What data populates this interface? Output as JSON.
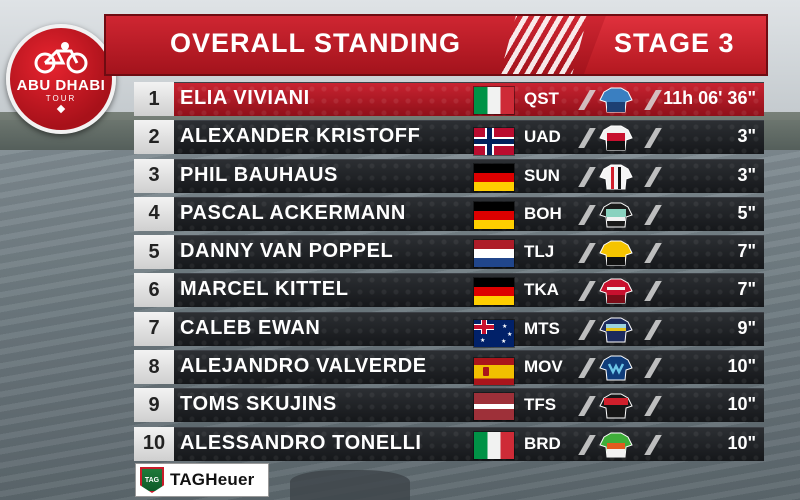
{
  "header": {
    "title": "OVERALL STANDING",
    "stage": "STAGE 3",
    "accent_color": "#c41e2a"
  },
  "logo": {
    "line1": "ABU DHABI",
    "line2": "TOUR"
  },
  "standings": [
    {
      "pos": "1",
      "name": "ELIA VIVIANI",
      "flag": "italy-flag",
      "team": "QST",
      "jersey": "quickstep-jersey",
      "time": "11h 06' 36\""
    },
    {
      "pos": "2",
      "name": "ALEXANDER KRISTOFF",
      "flag": "norway-flag",
      "team": "UAD",
      "jersey": "uae-jersey",
      "time": "3\""
    },
    {
      "pos": "3",
      "name": "PHIL BAUHAUS",
      "flag": "germany-flag",
      "team": "SUN",
      "jersey": "sunweb-jersey",
      "time": "3\""
    },
    {
      "pos": "4",
      "name": "PASCAL ACKERMANN",
      "flag": "germany-flag",
      "team": "BOH",
      "jersey": "bora-jersey",
      "time": "5\""
    },
    {
      "pos": "5",
      "name": "DANNY VAN POPPEL",
      "flag": "netherlands-flag",
      "team": "TLJ",
      "jersey": "lottonl-jersey",
      "time": "7\""
    },
    {
      "pos": "6",
      "name": "MARCEL KITTEL",
      "flag": "germany-flag",
      "team": "TKA",
      "jersey": "katusha-jersey",
      "time": "7\""
    },
    {
      "pos": "7",
      "name": "CALEB EWAN",
      "flag": "australia-flag",
      "team": "MTS",
      "jersey": "mitchelton-jersey",
      "time": "9\""
    },
    {
      "pos": "8",
      "name": "ALEJANDRO VALVERDE",
      "flag": "spain-flag",
      "team": "MOV",
      "jersey": "movistar-jersey",
      "time": "10\""
    },
    {
      "pos": "9",
      "name": "TOMS SKUJINS",
      "flag": "latvia-flag",
      "team": "TFS",
      "jersey": "trek-jersey",
      "time": "10\""
    },
    {
      "pos": "10",
      "name": "ALESSANDRO TONELLI",
      "flag": "italy-flag",
      "team": "BRD",
      "jersey": "bardiani-jersey",
      "time": "10\""
    }
  ],
  "sponsor": {
    "emblem": "TAG",
    "text": "TAGHeuer"
  }
}
